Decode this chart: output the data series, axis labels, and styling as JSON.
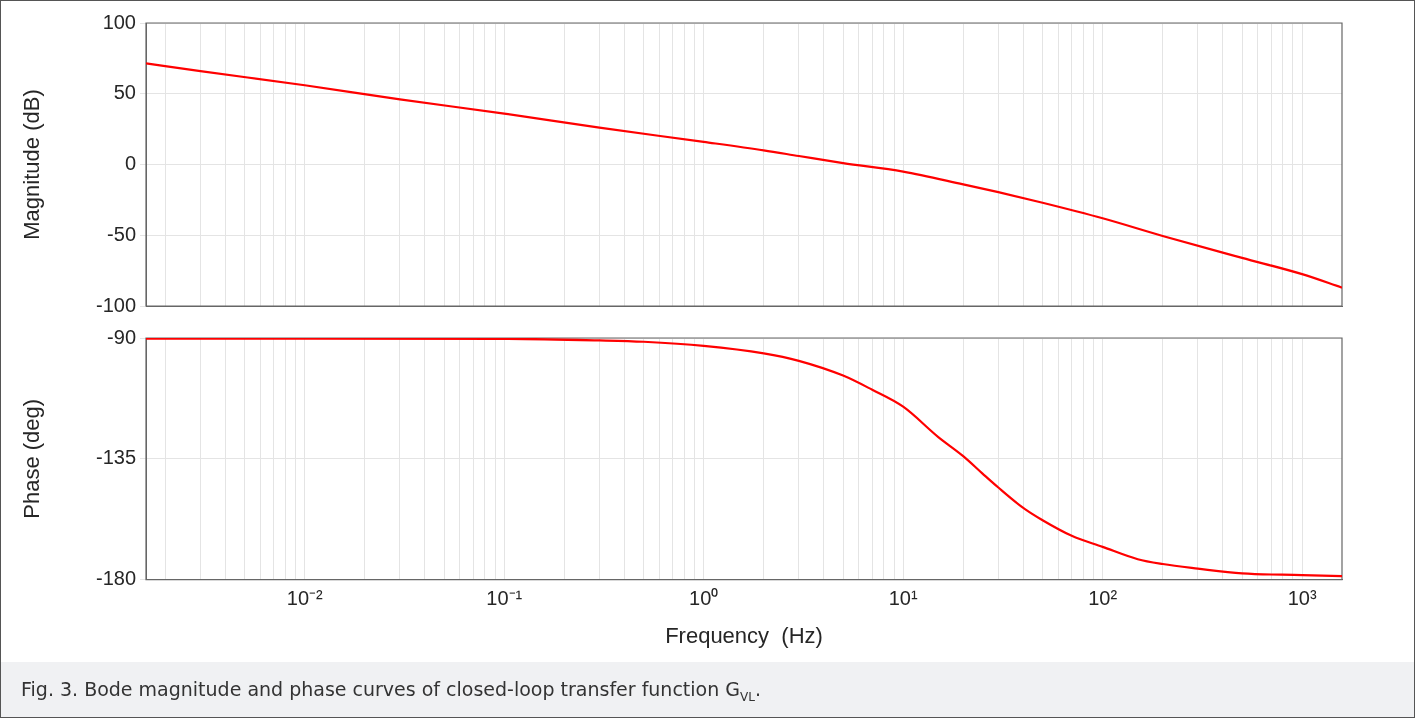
{
  "chart_data": [
    {
      "type": "line",
      "ylabel": "Magnitude (dB)",
      "color": "#ff0000",
      "marker": "none",
      "line_style": "solid",
      "log": "x",
      "grid": true,
      "tick_labels": "y",
      "x": [
        0.0016,
        0.003,
        0.01,
        0.03,
        0.1,
        0.3,
        1,
        2,
        3,
        5,
        10,
        20,
        30,
        50,
        100,
        200,
        500,
        1000,
        1585
      ],
      "values": [
        71.5,
        66,
        56,
        46,
        36,
        26,
        16,
        10,
        6,
        1,
        -5,
        -14,
        -19.5,
        -27,
        -38,
        -50.5,
        -66,
        -77.5,
        -87
      ],
      "xlim": [
        0.0016,
        1585
      ],
      "ylim": [
        -100,
        100
      ],
      "yticks": [
        -100,
        -50,
        0,
        50,
        100
      ],
      "xticks": [
        {
          "value": 0.002,
          "label": null
        },
        {
          "value": 0.003,
          "label": null
        },
        {
          "value": 0.004,
          "label": null
        },
        {
          "value": 0.005,
          "label": null
        },
        {
          "value": 0.006,
          "label": null
        },
        {
          "value": 0.007,
          "label": null
        },
        {
          "value": 0.008,
          "label": null
        },
        {
          "value": 0.009,
          "label": null
        },
        {
          "value": 0.01,
          "label": null
        },
        {
          "value": 0.02,
          "label": null
        },
        {
          "value": 0.03,
          "label": null
        },
        {
          "value": 0.04,
          "label": null
        },
        {
          "value": 0.05,
          "label": null
        },
        {
          "value": 0.06,
          "label": null
        },
        {
          "value": 0.07,
          "label": null
        },
        {
          "value": 0.08,
          "label": null
        },
        {
          "value": 0.09,
          "label": null
        },
        {
          "value": 0.1,
          "label": null
        },
        {
          "value": 0.2,
          "label": null
        },
        {
          "value": 0.3,
          "label": null
        },
        {
          "value": 0.4,
          "label": null
        },
        {
          "value": 0.5,
          "label": null
        },
        {
          "value": 0.6,
          "label": null
        },
        {
          "value": 0.7,
          "label": null
        },
        {
          "value": 0.8,
          "label": null
        },
        {
          "value": 0.9,
          "label": null
        },
        {
          "value": 1,
          "label": null
        },
        {
          "value": 2,
          "label": null
        },
        {
          "value": 3,
          "label": null
        },
        {
          "value": 4,
          "label": null
        },
        {
          "value": 5,
          "label": null
        },
        {
          "value": 6,
          "label": null
        },
        {
          "value": 7,
          "label": null
        },
        {
          "value": 8,
          "label": null
        },
        {
          "value": 9,
          "label": null
        },
        {
          "value": 10,
          "label": null
        },
        {
          "value": 20,
          "label": null
        },
        {
          "value": 30,
          "label": null
        },
        {
          "value": 40,
          "label": null
        },
        {
          "value": 50,
          "label": null
        },
        {
          "value": 60,
          "label": null
        },
        {
          "value": 70,
          "label": null
        },
        {
          "value": 80,
          "label": null
        },
        {
          "value": 90,
          "label": null
        },
        {
          "value": 100,
          "label": null
        },
        {
          "value": 200,
          "label": null
        },
        {
          "value": 300,
          "label": null
        },
        {
          "value": 400,
          "label": null
        },
        {
          "value": 500,
          "label": null
        },
        {
          "value": 600,
          "label": null
        },
        {
          "value": 700,
          "label": null
        },
        {
          "value": 800,
          "label": null
        },
        {
          "value": 900,
          "label": null
        },
        {
          "value": 1000,
          "label": null
        }
      ]
    },
    {
      "type": "line",
      "ylabel": "Phase (deg)",
      "xlabel": "Frequency  (Hz)",
      "color": "#ff0000",
      "marker": "none",
      "line_style": "solid",
      "log": "x",
      "grid": true,
      "x": [
        0.0016,
        0.1,
        0.3,
        0.5,
        1,
        2,
        3,
        5,
        7,
        10,
        15,
        20,
        25,
        30,
        40,
        50,
        70,
        100,
        150,
        200,
        300,
        500,
        1000,
        1585
      ],
      "values": [
        -90.2,
        -90.3,
        -90.9,
        -91.4,
        -92.9,
        -95.7,
        -98.5,
        -104,
        -109.3,
        -115.6,
        -126.9,
        -134,
        -140.5,
        -145.7,
        -153.3,
        -157.9,
        -163.7,
        -167.8,
        -172.4,
        -174.2,
        -175.9,
        -177.7,
        -178.3,
        -178.7
      ],
      "xlim": [
        0.0016,
        1585
      ],
      "ylim": [
        -180,
        -90
      ],
      "yticks": [
        -180,
        -135,
        -90
      ],
      "xticks": [
        {
          "value": 0.002,
          "label": null
        },
        {
          "value": 0.003,
          "label": null
        },
        {
          "value": 0.004,
          "label": null
        },
        {
          "value": 0.005,
          "label": null
        },
        {
          "value": 0.006,
          "label": null
        },
        {
          "value": 0.007,
          "label": null
        },
        {
          "value": 0.008,
          "label": null
        },
        {
          "value": 0.009,
          "label": null
        },
        {
          "value": 0.01,
          "label": "10⁻²"
        },
        {
          "value": 0.02,
          "label": null
        },
        {
          "value": 0.03,
          "label": null
        },
        {
          "value": 0.04,
          "label": null
        },
        {
          "value": 0.05,
          "label": null
        },
        {
          "value": 0.06,
          "label": null
        },
        {
          "value": 0.07,
          "label": null
        },
        {
          "value": 0.08,
          "label": null
        },
        {
          "value": 0.09,
          "label": null
        },
        {
          "value": 0.1,
          "label": "10⁻¹"
        },
        {
          "value": 0.2,
          "label": null
        },
        {
          "value": 0.3,
          "label": null
        },
        {
          "value": 0.4,
          "label": null
        },
        {
          "value": 0.5,
          "label": null
        },
        {
          "value": 0.6,
          "label": null
        },
        {
          "value": 0.7,
          "label": null
        },
        {
          "value": 0.8,
          "label": null
        },
        {
          "value": 0.9,
          "label": null
        },
        {
          "value": 1,
          "label": "10⁰"
        },
        {
          "value": 2,
          "label": null
        },
        {
          "value": 3,
          "label": null
        },
        {
          "value": 4,
          "label": null
        },
        {
          "value": 5,
          "label": null
        },
        {
          "value": 6,
          "label": null
        },
        {
          "value": 7,
          "label": null
        },
        {
          "value": 8,
          "label": null
        },
        {
          "value": 9,
          "label": null
        },
        {
          "value": 10,
          "label": "10¹"
        },
        {
          "value": 20,
          "label": null
        },
        {
          "value": 30,
          "label": null
        },
        {
          "value": 40,
          "label": null
        },
        {
          "value": 50,
          "label": null
        },
        {
          "value": 60,
          "label": null
        },
        {
          "value": 70,
          "label": null
        },
        {
          "value": 80,
          "label": null
        },
        {
          "value": 90,
          "label": null
        },
        {
          "value": 100,
          "label": "10²"
        },
        {
          "value": 200,
          "label": null
        },
        {
          "value": 300,
          "label": null
        },
        {
          "value": 400,
          "label": null
        },
        {
          "value": 500,
          "label": null
        },
        {
          "value": 600,
          "label": null
        },
        {
          "value": 700,
          "label": null
        },
        {
          "value": 800,
          "label": null
        },
        {
          "value": 900,
          "label": null
        },
        {
          "value": 1000,
          "label": "10³"
        }
      ],
      "annotations": [
        "Fig. 3.  Bode magnitude and phase curves of closed-loop transfer function G$_{VL}$."
      ]
    }
  ]
}
